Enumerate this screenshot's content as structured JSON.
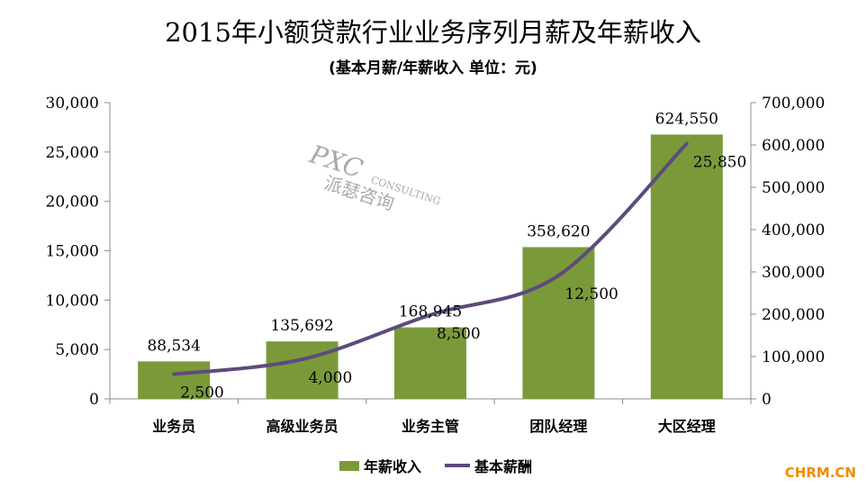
{
  "chart_data": {
    "type": "bar",
    "title": "2015年小额贷款行业业务序列月薪及年薪收入",
    "subtitle": "(基本月薪/年薪收入  单位：元)",
    "categories": [
      "业务员",
      "高级业务员",
      "业务主管",
      "团队经理",
      "大区经理"
    ],
    "series": [
      {
        "name": "年薪收入",
        "type": "bar",
        "axis": "right",
        "color": "#7a9a3a",
        "values": [
          88534,
          135692,
          168945,
          358620,
          624550
        ],
        "labels": [
          "88,534",
          "135,692",
          "168,945",
          "358,620",
          "624,550"
        ]
      },
      {
        "name": "基本薪酬",
        "type": "line",
        "axis": "left",
        "color": "#5e4a7e",
        "values": [
          2500,
          4000,
          8500,
          12500,
          25850
        ],
        "labels": [
          "2,500",
          "4,000",
          "8,500",
          "12,500",
          "25,850"
        ]
      }
    ],
    "left_axis": {
      "ylim": [
        0,
        30000
      ],
      "ticks": [
        "0",
        "5,000",
        "10,000",
        "15,000",
        "20,000",
        "25,000",
        "30,000"
      ]
    },
    "right_axis": {
      "ylim": [
        0,
        700000
      ],
      "ticks": [
        "0",
        "100,000",
        "200,000",
        "300,000",
        "400,000",
        "500,000",
        "600,000",
        "700,000"
      ]
    },
    "grid": false,
    "legend_position": "bottom"
  },
  "watermark": {
    "line1": "PXC",
    "line2": "CONSULTING",
    "line3": "派瑟咨询"
  },
  "brand": "CHRM.CN"
}
